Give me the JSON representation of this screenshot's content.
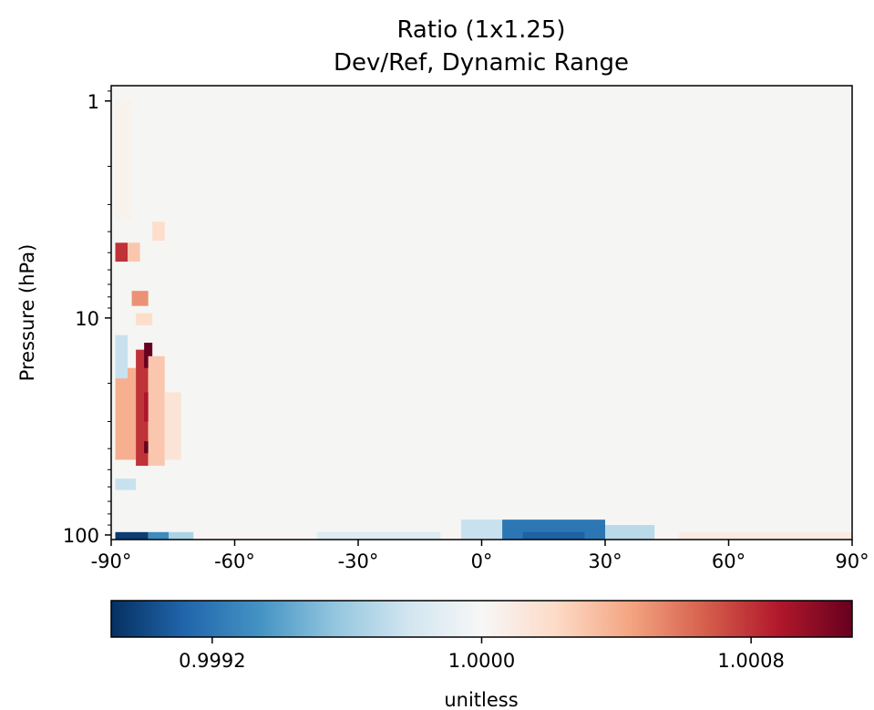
{
  "chart_data": {
    "type": "heatmap",
    "title": "Ratio (1x1.25)",
    "subtitle": "Dev/Ref, Dynamic Range",
    "xlabel": "",
    "ylabel": "Pressure (hPa)",
    "x_ticks": [
      "-90°",
      "-60°",
      "-30°",
      "0°",
      "30°",
      "60°",
      "90°"
    ],
    "x_tick_values": [
      -90,
      -60,
      -30,
      0,
      30,
      60,
      90
    ],
    "xlim": [
      -90,
      90
    ],
    "y_scale": "log",
    "y_ticks": [
      "1",
      "10",
      "100"
    ],
    "y_tick_values": [
      1,
      10,
      100
    ],
    "ylim": [
      105,
      0.85
    ],
    "colorbar": {
      "label": "unitless",
      "colormap": "RdBu_r",
      "range": [
        0.9989,
        1.0011
      ],
      "ticks": [
        "0.9992",
        "1.0000",
        "1.0008"
      ],
      "tick_values": [
        0.9992,
        1.0,
        1.0008
      ]
    },
    "regions": [
      {
        "lat": [
          -89,
          -81
        ],
        "p": [
          97,
          105
        ],
        "value": 0.99895
      },
      {
        "lat": [
          -81,
          -76
        ],
        "p": [
          97,
          105
        ],
        "value": 0.9993
      },
      {
        "lat": [
          -76,
          -70
        ],
        "p": [
          97,
          105
        ],
        "value": 0.99965
      },
      {
        "lat": [
          -70,
          50
        ],
        "p": [
          97,
          105
        ],
        "value": 1.00002
      },
      {
        "lat": [
          -40,
          -10
        ],
        "p": [
          97,
          105
        ],
        "value": 0.99985
      },
      {
        "lat": [
          -5,
          5
        ],
        "p": [
          85,
          105
        ],
        "value": 0.99975
      },
      {
        "lat": [
          5,
          30
        ],
        "p": [
          85,
          105
        ],
        "value": 0.9992
      },
      {
        "lat": [
          10,
          25
        ],
        "p": [
          97,
          105
        ],
        "value": 0.9991
      },
      {
        "lat": [
          30,
          42
        ],
        "p": [
          90,
          105
        ],
        "value": 0.9997
      },
      {
        "lat": [
          48,
          90
        ],
        "p": [
          97,
          105
        ],
        "value": 1.0001
      },
      {
        "lat": [
          -89,
          -84
        ],
        "p": [
          17,
          45
        ],
        "value": 1.0004
      },
      {
        "lat": [
          -84,
          -81
        ],
        "p": [
          14,
          48
        ],
        "value": 1.0008
      },
      {
        "lat": [
          -82,
          -80
        ],
        "p": [
          13,
          17
        ],
        "value": 1.0011
      },
      {
        "lat": [
          -82,
          -80
        ],
        "p": [
          37,
          42
        ],
        "value": 1.0011
      },
      {
        "lat": [
          -82,
          -80
        ],
        "p": [
          22,
          30
        ],
        "value": 1.0009
      },
      {
        "lat": [
          -81,
          -77
        ],
        "p": [
          15,
          48
        ],
        "value": 1.0003
      },
      {
        "lat": [
          -77,
          -73
        ],
        "p": [
          22,
          45
        ],
        "value": 1.00015
      },
      {
        "lat": [
          -89,
          -86
        ],
        "p": [
          4.5,
          5.5
        ],
        "value": 1.0008
      },
      {
        "lat": [
          -86,
          -83
        ],
        "p": [
          4.5,
          5.5
        ],
        "value": 1.0003
      },
      {
        "lat": [
          -85,
          -81
        ],
        "p": [
          7.5,
          8.8
        ],
        "value": 1.0005
      },
      {
        "lat": [
          -84,
          -80
        ],
        "p": [
          9.5,
          10.8
        ],
        "value": 1.0002
      },
      {
        "lat": [
          -89,
          -86
        ],
        "p": [
          12,
          19
        ],
        "value": 0.99975
      },
      {
        "lat": [
          -89,
          -84
        ],
        "p": [
          55,
          62
        ],
        "value": 0.99975
      },
      {
        "lat": [
          -80,
          -77
        ],
        "p": [
          3.6,
          4.4
        ],
        "value": 1.0002
      },
      {
        "lat": [
          -89,
          -85
        ],
        "p": [
          1.0,
          3.5
        ],
        "value": 1.00005
      }
    ]
  }
}
